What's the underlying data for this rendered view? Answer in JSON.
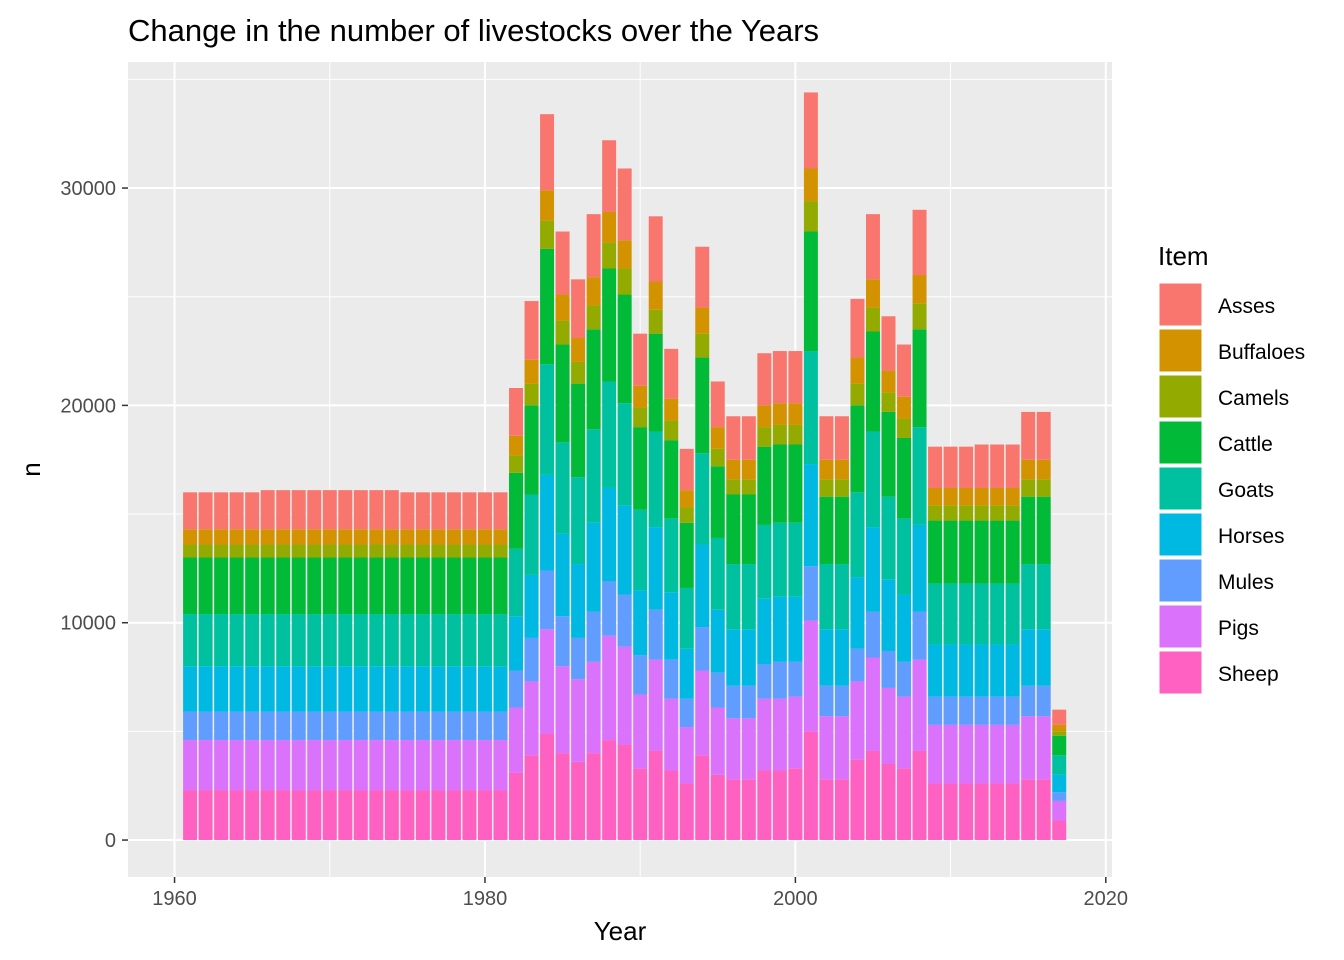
{
  "chart_data": {
    "type": "bar",
    "stacked": true,
    "title": "Change in the number of livestocks over the Years",
    "xlabel": "Year",
    "ylabel": "n",
    "xlim": [
      1957.0,
      2020.4
    ],
    "ylim": [
      -1700,
      35800
    ],
    "x_ticks": [
      1960,
      1980,
      2000,
      2020
    ],
    "x_tick_labels": [
      "1960",
      "1980",
      "2000",
      "2020"
    ],
    "y_ticks": [
      0,
      10000,
      20000,
      30000
    ],
    "y_tick_labels": [
      "0",
      "10000",
      "20000",
      "30000"
    ],
    "background": "#ebebeb",
    "grid": true,
    "legend": {
      "title": "Item",
      "position": "right"
    },
    "years": [
      1961,
      1962,
      1963,
      1964,
      1965,
      1966,
      1967,
      1968,
      1969,
      1970,
      1971,
      1972,
      1973,
      1974,
      1975,
      1976,
      1977,
      1978,
      1979,
      1980,
      1981,
      1982,
      1983,
      1984,
      1985,
      1986,
      1987,
      1988,
      1989,
      1990,
      1991,
      1992,
      1993,
      1994,
      1995,
      1996,
      1997,
      1998,
      1999,
      2000,
      2001,
      2002,
      2003,
      2004,
      2005,
      2006,
      2007,
      2008,
      2009,
      2010,
      2011,
      2012,
      2013,
      2014,
      2015,
      2016,
      2017
    ],
    "series": [
      {
        "name": "Sheep",
        "color": "#FF61C3",
        "values": [
          2300,
          2300,
          2300,
          2300,
          2300,
          2300,
          2300,
          2300,
          2300,
          2300,
          2300,
          2300,
          2300,
          2300,
          2300,
          2300,
          2300,
          2300,
          2300,
          2300,
          2300,
          3100,
          3900,
          4900,
          4000,
          3600,
          4000,
          4600,
          4400,
          3300,
          4100,
          3200,
          2600,
          3900,
          3000,
          2800,
          2800,
          3200,
          3200,
          3300,
          5000,
          2800,
          2800,
          3700,
          4100,
          3500,
          3300,
          4100,
          2600,
          2600,
          2600,
          2600,
          2600,
          2600,
          2800,
          2800,
          900
        ]
      },
      {
        "name": "Pigs",
        "color": "#DB72FB",
        "values": [
          2300,
          2300,
          2300,
          2300,
          2300,
          2300,
          2300,
          2300,
          2300,
          2300,
          2300,
          2300,
          2300,
          2300,
          2300,
          2300,
          2300,
          2300,
          2300,
          2300,
          2300,
          3000,
          3400,
          4800,
          4000,
          3800,
          4200,
          4800,
          4500,
          3400,
          4200,
          3300,
          2600,
          3900,
          3100,
          2800,
          2800,
          3300,
          3300,
          3300,
          5100,
          2900,
          2900,
          3600,
          4300,
          3500,
          3300,
          4200,
          2700,
          2700,
          2700,
          2700,
          2700,
          2700,
          2900,
          2900,
          900
        ]
      },
      {
        "name": "Mules",
        "color": "#619CFF",
        "values": [
          1300,
          1300,
          1300,
          1300,
          1300,
          1300,
          1300,
          1300,
          1300,
          1300,
          1300,
          1300,
          1300,
          1300,
          1300,
          1300,
          1300,
          1300,
          1300,
          1300,
          1300,
          1700,
          2000,
          2700,
          2300,
          1900,
          2300,
          2500,
          2400,
          1800,
          2300,
          1800,
          1300,
          2000,
          1600,
          1500,
          1500,
          1600,
          1700,
          1600,
          2500,
          1400,
          1400,
          1500,
          2100,
          1700,
          1600,
          2200,
          1300,
          1300,
          1300,
          1300,
          1300,
          1300,
          1400,
          1400,
          400
        ]
      },
      {
        "name": "Horses",
        "color": "#00B9E3",
        "values": [
          2100,
          2100,
          2100,
          2100,
          2100,
          2100,
          2100,
          2100,
          2100,
          2100,
          2100,
          2100,
          2100,
          2100,
          2100,
          2100,
          2100,
          2100,
          2100,
          2100,
          2100,
          2500,
          2900,
          4400,
          3800,
          3400,
          4100,
          4300,
          4100,
          3000,
          3800,
          3100,
          2300,
          3800,
          2900,
          2600,
          2600,
          3000,
          3000,
          3000,
          4700,
          2600,
          2600,
          3300,
          3900,
          3300,
          3100,
          4000,
          2400,
          2400,
          2400,
          2400,
          2400,
          2400,
          2600,
          2600,
          800
        ]
      },
      {
        "name": "Goats",
        "color": "#00C19F",
        "values": [
          2400,
          2400,
          2400,
          2400,
          2400,
          2400,
          2400,
          2400,
          2400,
          2400,
          2400,
          2400,
          2400,
          2400,
          2400,
          2400,
          2400,
          2400,
          2400,
          2400,
          2400,
          3100,
          3700,
          5100,
          4200,
          4000,
          4300,
          4900,
          4700,
          3700,
          4400,
          3400,
          2800,
          4200,
          3300,
          3000,
          3000,
          3400,
          3400,
          3400,
          5200,
          3000,
          3000,
          3900,
          4400,
          3800,
          3500,
          4500,
          2800,
          2800,
          2800,
          2800,
          2800,
          2800,
          3000,
          3000,
          900
        ]
      },
      {
        "name": "Cattle",
        "color": "#00BA38",
        "values": [
          2600,
          2600,
          2600,
          2600,
          2600,
          2600,
          2600,
          2600,
          2600,
          2600,
          2600,
          2600,
          2600,
          2600,
          2600,
          2600,
          2600,
          2600,
          2600,
          2600,
          2600,
          3500,
          4100,
          5300,
          4500,
          4300,
          4600,
          5200,
          5000,
          3800,
          4500,
          3600,
          3000,
          4400,
          3300,
          3200,
          3200,
          3600,
          3600,
          3600,
          5500,
          3100,
          3100,
          4000,
          4600,
          3900,
          3700,
          4500,
          2900,
          2900,
          2900,
          2900,
          2900,
          2900,
          3100,
          3100,
          900
        ]
      },
      {
        "name": "Camels",
        "color": "#93AA00",
        "values": [
          600,
          600,
          600,
          600,
          600,
          600,
          600,
          600,
          600,
          600,
          600,
          600,
          600,
          600,
          600,
          600,
          600,
          600,
          600,
          600,
          600,
          800,
          1000,
          1300,
          1100,
          1000,
          1100,
          1200,
          1200,
          900,
          1100,
          900,
          700,
          1100,
          800,
          700,
          700,
          900,
          900,
          900,
          1400,
          800,
          800,
          1000,
          1100,
          900,
          900,
          1200,
          700,
          700,
          700,
          700,
          700,
          700,
          800,
          800,
          200
        ]
      },
      {
        "name": "Buffaloes",
        "color": "#D39200",
        "values": [
          700,
          700,
          700,
          700,
          700,
          700,
          700,
          700,
          700,
          700,
          700,
          700,
          700,
          700,
          700,
          700,
          700,
          700,
          700,
          700,
          700,
          900,
          1100,
          1400,
          1200,
          1100,
          1300,
          1400,
          1300,
          1000,
          1300,
          1000,
          800,
          1200,
          1000,
          900,
          900,
          1000,
          1000,
          1000,
          1500,
          900,
          900,
          1200,
          1300,
          1000,
          1000,
          1300,
          800,
          800,
          800,
          800,
          800,
          800,
          900,
          900,
          300
        ]
      },
      {
        "name": "Asses",
        "color": "#F8766D",
        "values": [
          1700,
          1700,
          1700,
          1700,
          1700,
          1800,
          1800,
          1800,
          1800,
          1800,
          1800,
          1800,
          1800,
          1800,
          1700,
          1700,
          1700,
          1700,
          1700,
          1700,
          1700,
          2200,
          2700,
          3500,
          2900,
          2700,
          2900,
          3300,
          3300,
          2400,
          3000,
          2300,
          1900,
          2800,
          2100,
          2000,
          2000,
          2400,
          2400,
          2400,
          3500,
          2000,
          2000,
          2700,
          3000,
          2500,
          2400,
          3000,
          1900,
          1900,
          1900,
          2000,
          2000,
          2000,
          2200,
          2200,
          700
        ]
      }
    ]
  }
}
